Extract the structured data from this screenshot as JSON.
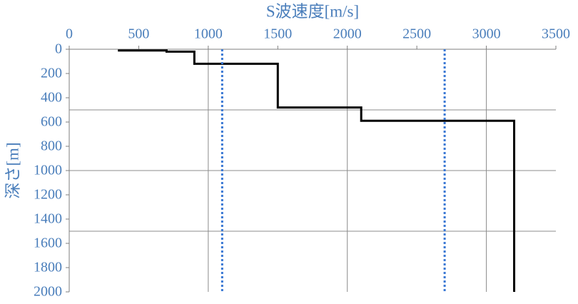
{
  "chart_data": {
    "type": "line",
    "title": "S波速度[m/s]",
    "y_label": "深さ[m]",
    "xlim": [
      0,
      3500
    ],
    "xticks": [
      0,
      500,
      1000,
      1500,
      2000,
      2500,
      3000,
      3500
    ],
    "ylim": [
      0,
      2000
    ],
    "yticks": [
      0,
      200,
      400,
      600,
      800,
      1000,
      1200,
      1400,
      1600,
      1800,
      2000
    ],
    "y_inverted": true,
    "x_axis_position": "top",
    "grid_x": [
      1000,
      2000,
      3000
    ],
    "grid_y": [
      500,
      1000,
      1500
    ],
    "series": [
      {
        "color": "#000000",
        "dashed": false,
        "x": [
          350,
          700,
          700,
          900,
          900,
          1500,
          1500,
          2100,
          2100,
          3200,
          3200
        ],
        "y": [
          10,
          10,
          20,
          20,
          120,
          120,
          480,
          480,
          590,
          590,
          2000
        ]
      },
      {
        "color": "#3a78d4",
        "dashed": true,
        "x": [
          1100,
          1100
        ],
        "y": [
          0,
          2000
        ]
      },
      {
        "color": "#3a78d4",
        "dashed": true,
        "x": [
          2700,
          2700
        ],
        "y": [
          0,
          2000
        ]
      }
    ]
  }
}
